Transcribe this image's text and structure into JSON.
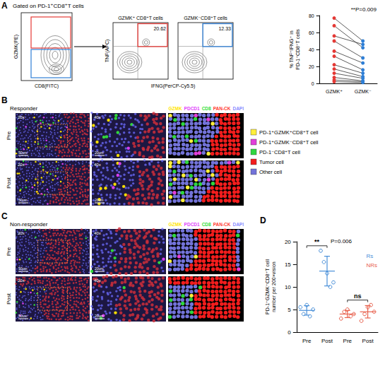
{
  "panel_a": {
    "letter": "A",
    "gate_title": "Gated on PD-1⁺CD8⁺T cells",
    "flow_plots": [
      {
        "x_label": "CD8(FITC)",
        "y_label": "GZMK(PE)"
      },
      {
        "title": "GZMK⁺ CD8⁺T cells",
        "y_label": "TNF(APC)",
        "gate_value": "20.62",
        "gate_color": "#e53935"
      },
      {
        "title": "GZMK⁻CD8⁺T cells",
        "gate_value": "12.33",
        "gate_color": "#2f7fd6"
      }
    ],
    "flow_x_label": "IFNG(PerCP-Cy5.5)"
  },
  "panel_b": {
    "letter": "B",
    "group": "Responder",
    "rows": [
      "Pre",
      "Post"
    ],
    "magnifications": [
      "20x",
      "40x"
    ],
    "scale_bars": [
      "50um",
      "20um"
    ],
    "channels": [
      {
        "name": "GZMK",
        "color": "#ffe600"
      },
      {
        "name": "PDCD1",
        "color": "#e040fb"
      },
      {
        "name": "CD8",
        "color": "#31e03a"
      },
      {
        "name": "PAN-CK",
        "color": "#ff3b30"
      },
      {
        "name": "DAPI",
        "color": "#8a8aff"
      }
    ],
    "cell_types": [
      {
        "name": "PD-1⁺GZMK⁺CD8⁺T cell",
        "color": "#ffef3a"
      },
      {
        "name": "PD-1⁺GZMK⁻CD8⁺T cell",
        "color": "#e23fd9"
      },
      {
        "name": "PD-1⁻CD8⁺T cell",
        "color": "#2fd63f"
      },
      {
        "name": "Tumor cell",
        "color": "#f21d1d"
      },
      {
        "name": "Other cell",
        "color": "#7373d9"
      }
    ]
  },
  "panel_c": {
    "letter": "C",
    "group": "Non-responder",
    "rows": [
      "Pre",
      "Post"
    ],
    "magnifications": [
      "20x",
      "40x"
    ],
    "scale_bars": [
      "50um",
      "20um"
    ],
    "channels": [
      {
        "name": "GZMK",
        "color": "#ffe600"
      },
      {
        "name": "PDCD1",
        "color": "#e040fb"
      },
      {
        "name": "CD8",
        "color": "#31e03a"
      },
      {
        "name": "PAN-CK",
        "color": "#ff3b30"
      },
      {
        "name": "DAPI",
        "color": "#8a8aff"
      }
    ]
  },
  "panel_d": {
    "letter": "D"
  },
  "chart_data": [
    {
      "type": "line",
      "categories": [
        "GZMK⁺",
        "GZMK⁻"
      ],
      "colors": [
        "#e53935",
        "#2f7fd6"
      ],
      "ylabel": "% TNF⁺IFNG⁺ in PD-1⁺CD8⁺T cells",
      "ylim": [
        0,
        80
      ],
      "yticks": [
        0,
        20,
        40,
        60,
        80
      ],
      "pairs": [
        [
          77,
          50
        ],
        [
          68,
          42
        ],
        [
          56,
          46
        ],
        [
          50,
          30
        ],
        [
          38,
          24
        ],
        [
          32,
          16
        ],
        [
          22,
          12
        ],
        [
          17,
          8
        ],
        [
          12,
          6
        ],
        [
          7,
          3
        ],
        [
          4,
          2
        ],
        [
          2,
          1
        ]
      ],
      "annotation": "**P=0.009",
      "marker": "circle",
      "grid": false
    },
    {
      "type": "scatter",
      "categories": [
        "Pre",
        "Post",
        "Pre",
        "Post"
      ],
      "ylabel": "PD-1⁺GZMK⁺CD8⁺T cell number per 200×vision",
      "ylim": [
        0,
        20
      ],
      "yticks": [
        0,
        5,
        10,
        15,
        20
      ],
      "series": [
        {
          "name": "Rs",
          "color": "#4a90d9",
          "marker": "circle-open",
          "points": [
            [
              5.5,
              4,
              6,
              3.5,
              5
            ],
            [
              18,
              15.5,
              13,
              10,
              11
            ],
            null,
            null
          ],
          "mean": [
            4.8,
            13.5,
            null,
            null
          ],
          "sd": [
            1.04,
            3.28,
            null,
            null
          ]
        },
        {
          "name": "NRs",
          "color": "#e8604c",
          "marker": "circle-open",
          "points": [
            null,
            null,
            [
              3,
              4.5,
              5,
              3.5,
              4
            ],
            [
              2.5,
              4,
              5.5,
              6,
              4.5
            ]
          ],
          "mean": [
            null,
            null,
            4.0,
            4.5
          ],
          "sd": [
            null,
            null,
            0.79,
            1.37
          ]
        }
      ],
      "comparisons": [
        {
          "series": "Rs",
          "label": "**"
        },
        {
          "series": "NRs",
          "label": "ns"
        }
      ],
      "annotation": "P=0.006",
      "legend": "top-right",
      "grid": false
    }
  ]
}
